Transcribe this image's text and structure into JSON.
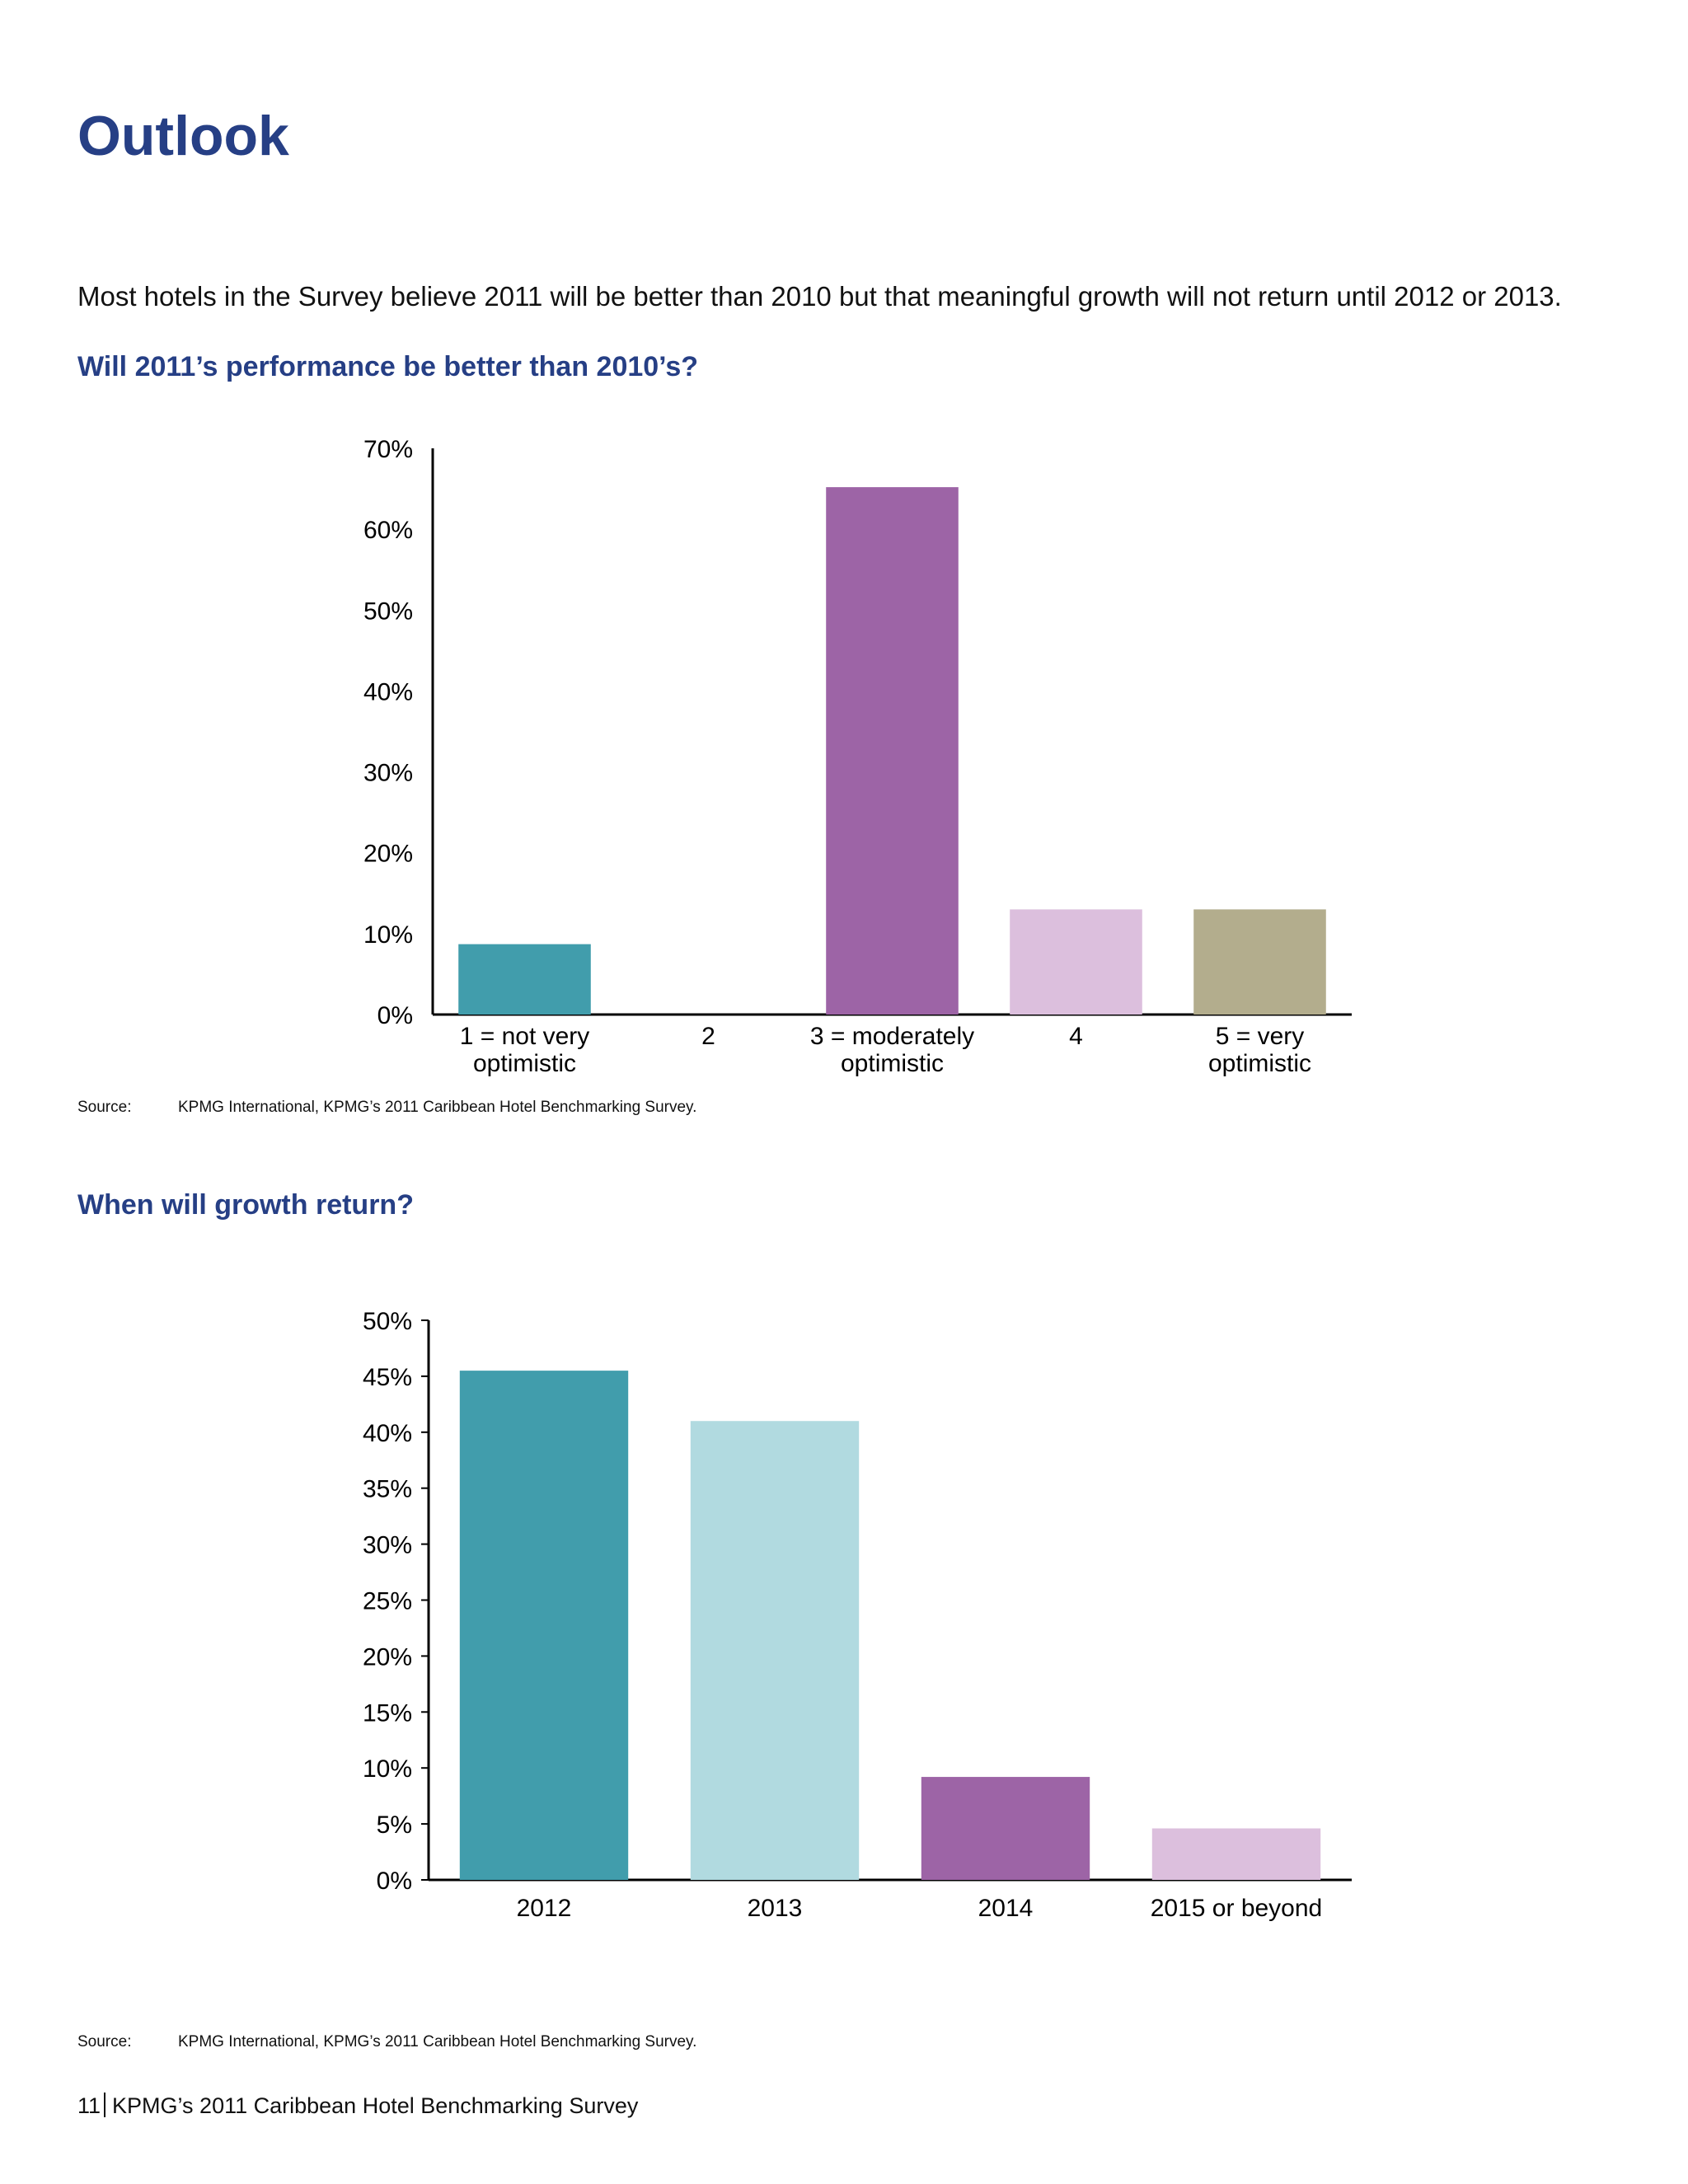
{
  "page": {
    "title": "Outlook",
    "intro": "Most hotels in the Survey believe 2011 will be better than 2010 but that meaningful growth will not return until 2012 or 2013."
  },
  "chart_data": [
    {
      "type": "bar",
      "title": "Will 2011’s performance be better than 2010’s?",
      "categories": [
        [
          "1 = not very",
          "optimistic"
        ],
        [
          "2"
        ],
        [
          "3 = moderately",
          "optimistic"
        ],
        [
          "4"
        ],
        [
          "5 = very",
          "optimistic"
        ]
      ],
      "values": [
        8.7,
        0,
        65.2,
        13.0,
        13.0
      ],
      "colors": [
        "#419dac",
        "#419dac",
        "#9d64a6",
        "#dcbfdd",
        "#b3ad8d"
      ],
      "ylim": [
        0,
        70
      ],
      "yticks": [
        0,
        10,
        20,
        30,
        40,
        50,
        60,
        70
      ],
      "ytick_format": "percent",
      "grid": false,
      "source_label": "Source:",
      "source": "KPMG International, KPMG’s 2011 Caribbean Hotel Benchmarking Survey."
    },
    {
      "type": "bar",
      "title": "When will growth return?",
      "categories": [
        [
          "2012"
        ],
        [
          "2013"
        ],
        [
          "2014"
        ],
        [
          "2015 or beyond"
        ]
      ],
      "values": [
        45.5,
        41.0,
        9.2,
        4.6
      ],
      "colors": [
        "#419dac",
        "#b1dae0",
        "#9d64a6",
        "#dcbfdd"
      ],
      "ylim": [
        0,
        50
      ],
      "yticks": [
        0,
        5,
        10,
        15,
        20,
        25,
        30,
        35,
        40,
        45,
        50
      ],
      "ytick_format": "percent",
      "grid": false,
      "source_label": "Source:",
      "source": "KPMG International, KPMG’s 2011 Caribbean Hotel Benchmarking Survey."
    }
  ],
  "footer": {
    "page_number": "11",
    "text": "KPMG’s 2011 Caribbean Hotel Benchmarking Survey"
  }
}
